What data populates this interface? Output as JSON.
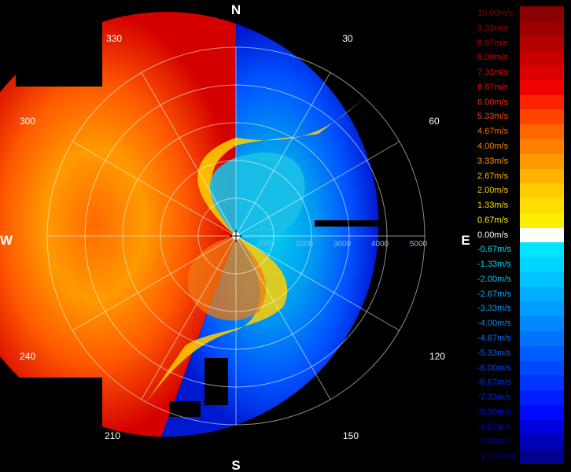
{
  "display": {
    "type": "radial velocity PPI",
    "cardinals": {
      "north": "N",
      "south": "S",
      "east": "E",
      "west": "W"
    },
    "azimuth_labels": [
      "30",
      "60",
      "120",
      "150",
      "210",
      "240",
      "300",
      "330"
    ],
    "range_labels": [
      "1000",
      "2000",
      "3000",
      "4000",
      "5000"
    ]
  },
  "legend": {
    "entries": [
      {
        "label": "10.00m/s",
        "color": "#8b0000"
      },
      {
        "label": "9.33m/s",
        "color": "#9e0000"
      },
      {
        "label": "8.67m/s",
        "color": "#b30000"
      },
      {
        "label": "8.00m/s",
        "color": "#c80000"
      },
      {
        "label": "7.33m/s",
        "color": "#de0000"
      },
      {
        "label": "6.67m/s",
        "color": "#f20000"
      },
      {
        "label": "6.00m/s",
        "color": "#ff2200"
      },
      {
        "label": "5.33m/s",
        "color": "#ff4400"
      },
      {
        "label": "4.67m/s",
        "color": "#ff6600"
      },
      {
        "label": "4.00m/s",
        "color": "#ff8000"
      },
      {
        "label": "3.33m/s",
        "color": "#ff9900"
      },
      {
        "label": "2.67m/s",
        "color": "#ffb300"
      },
      {
        "label": "2.00m/s",
        "color": "#ffcc00"
      },
      {
        "label": "1.33m/s",
        "color": "#ffdd00"
      },
      {
        "label": "0.67m/s",
        "color": "#ffee00"
      },
      {
        "label": "0.00m/s",
        "color": "#ffffff"
      },
      {
        "label": "-0.67m/s",
        "color": "#00e5ff"
      },
      {
        "label": "-1.33m/s",
        "color": "#00d5ff"
      },
      {
        "label": "-2.00m/s",
        "color": "#00c3ff"
      },
      {
        "label": "-2.67m/s",
        "color": "#00b0ff"
      },
      {
        "label": "-3.33m/s",
        "color": "#009dff"
      },
      {
        "label": "-4.00m/s",
        "color": "#0088ff"
      },
      {
        "label": "-4.67m/s",
        "color": "#0073ff"
      },
      {
        "label": "-5.33m/s",
        "color": "#005eff"
      },
      {
        "label": "-6.00m/s",
        "color": "#0049ff"
      },
      {
        "label": "-6.67m/s",
        "color": "#0034ff"
      },
      {
        "label": "-7.33m/s",
        "color": "#001fff"
      },
      {
        "label": "-8.00m/s",
        "color": "#000aff"
      },
      {
        "label": "-8.67m/s",
        "color": "#0000e0"
      },
      {
        "label": "-9.33m/s",
        "color": "#0000b8"
      },
      {
        "label": "-10.00m/s",
        "color": "#000090"
      }
    ]
  }
}
